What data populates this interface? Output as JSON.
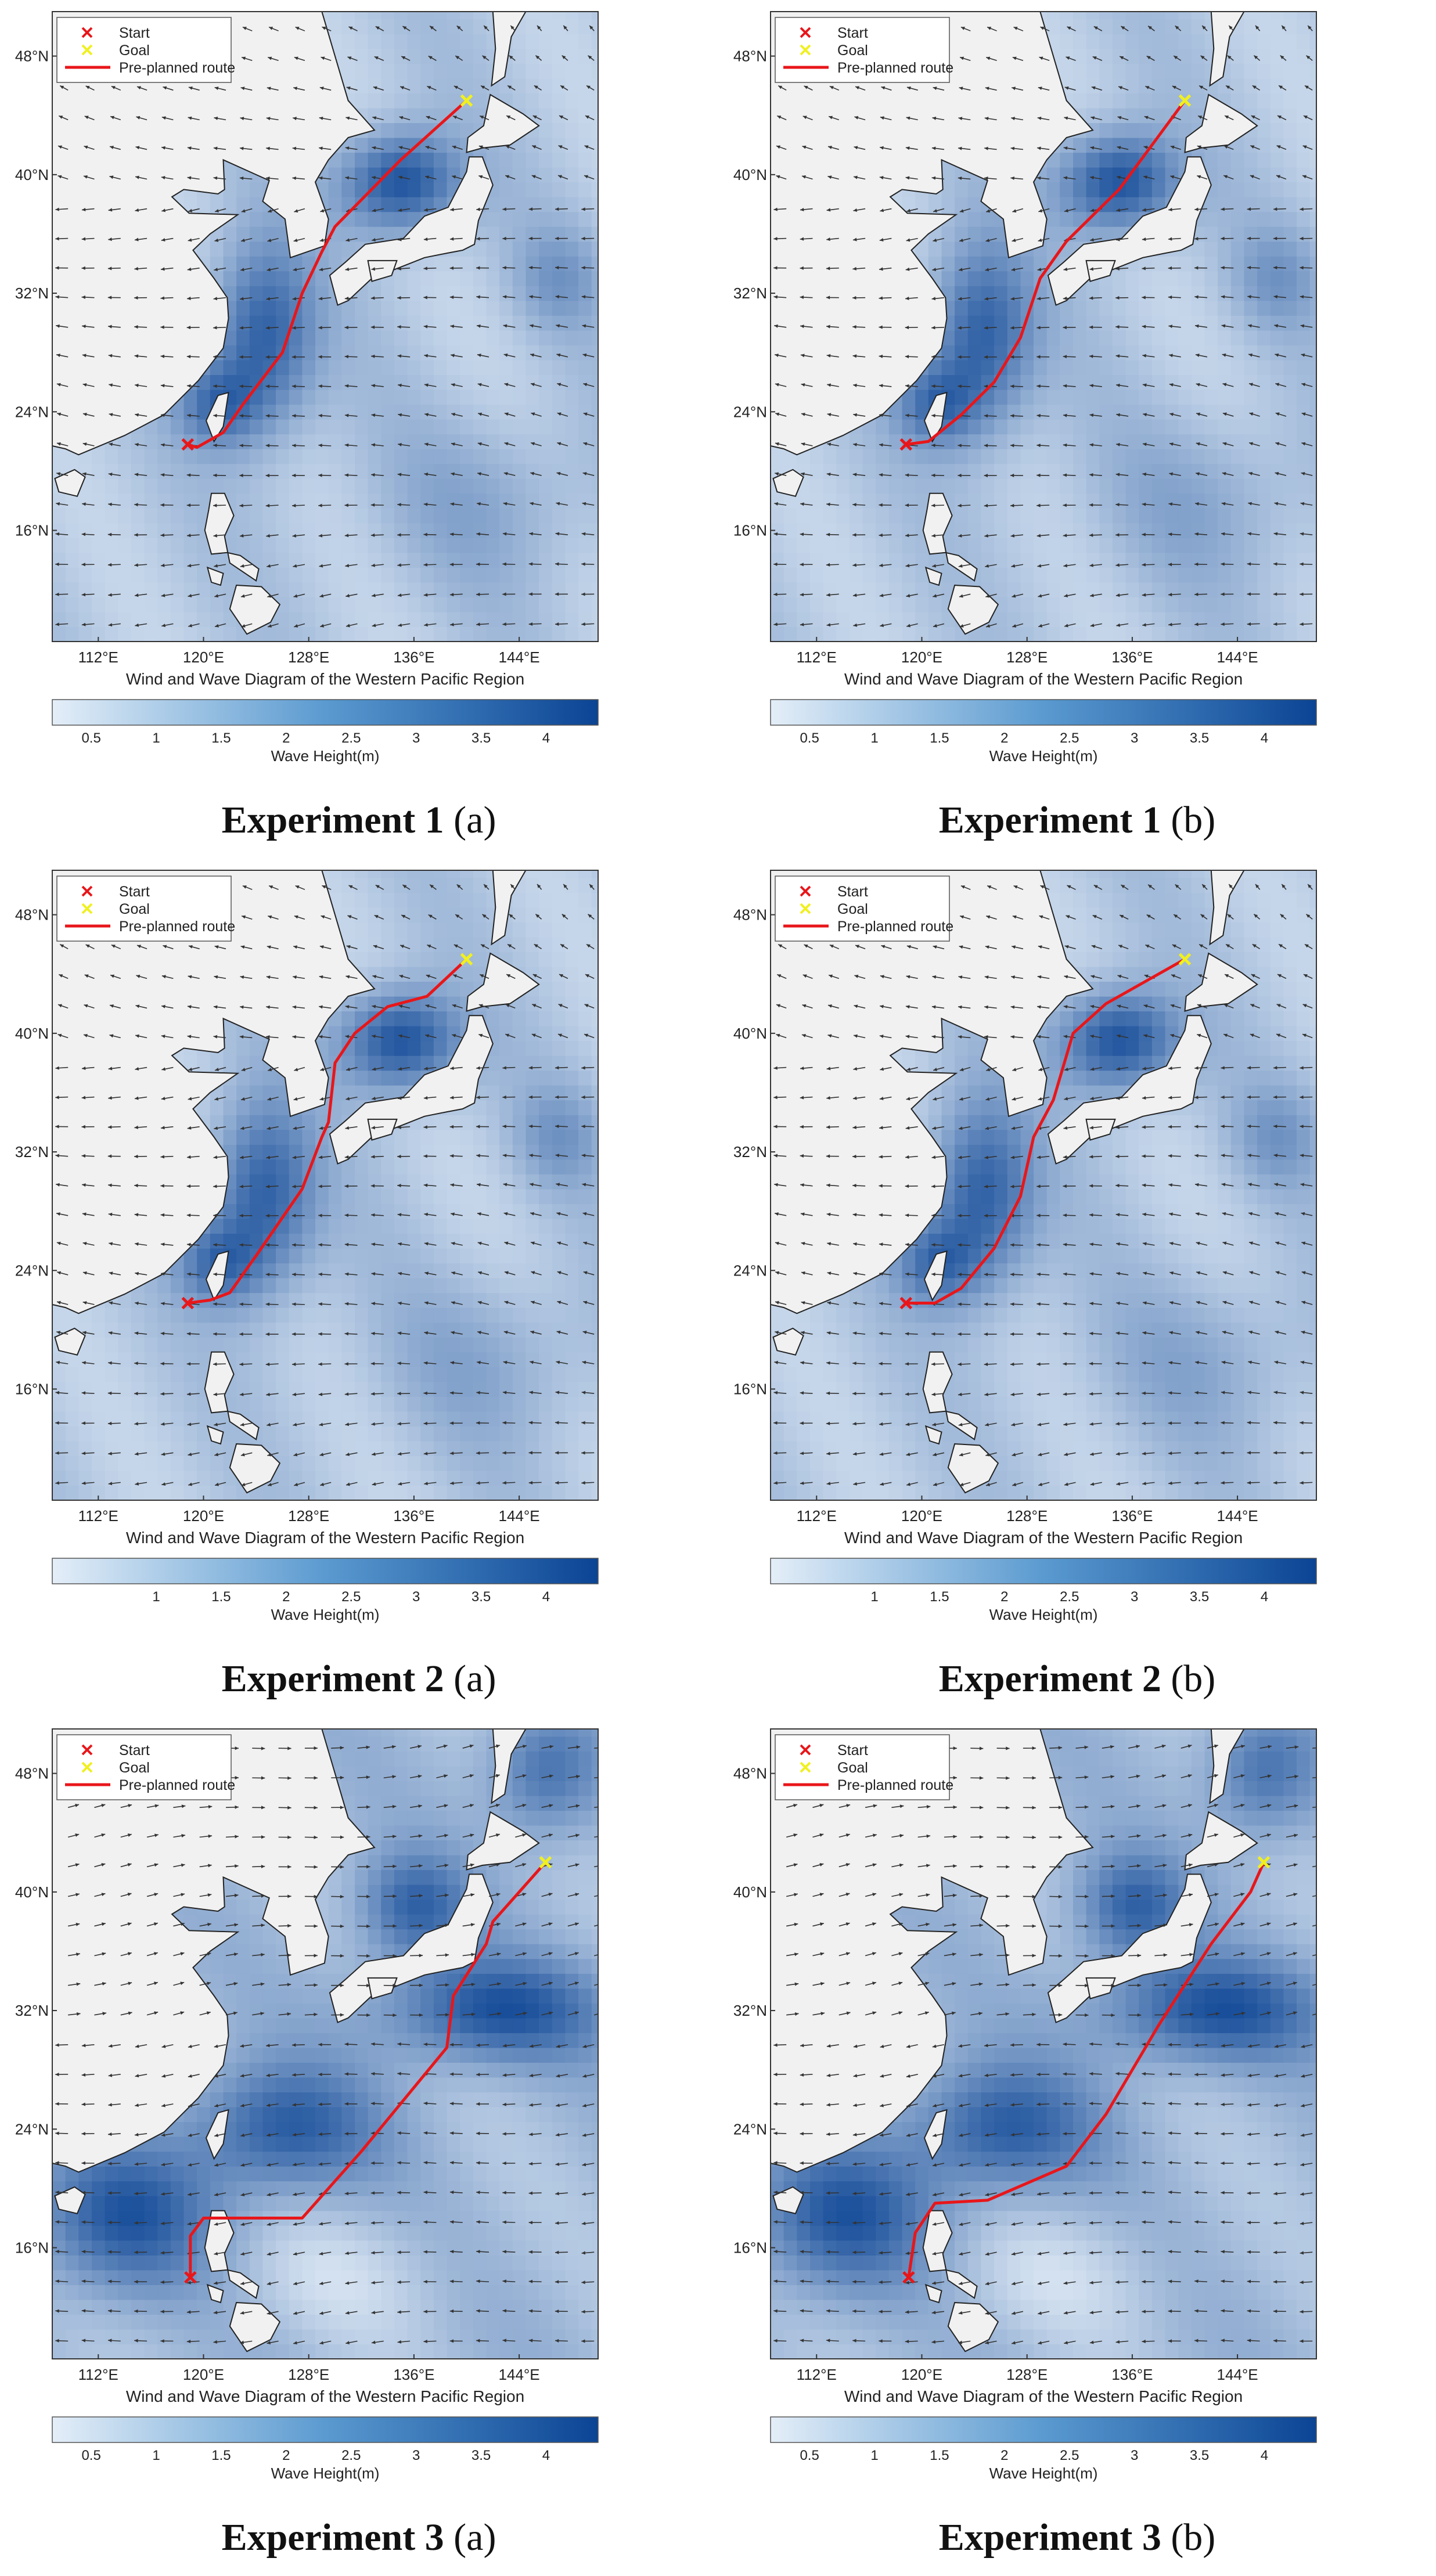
{
  "figure": {
    "map_title": "Wind and Wave Diagram of the Western Pacific Region",
    "colorbar_label": "Wave Height(m)",
    "legend": {
      "start": "Start",
      "goal": "Goal",
      "route": "Pre-planned route"
    },
    "lat_ticks": [
      "48°N",
      "40°N",
      "32°N",
      "24°N",
      "16°N"
    ],
    "lon_ticks": [
      "112°E",
      "120°E",
      "128°E",
      "136°E",
      "144°E"
    ],
    "colors": {
      "route": "#e8161a",
      "start": "#e8161a",
      "goal": "#f0f020",
      "land": "#f1f1f1",
      "water_light": "#e4eef8",
      "water_dark": "#0b4494"
    }
  },
  "panels": [
    {
      "caption_main": "Experiment 1",
      "caption_letter": "(a)",
      "colorbar_ticks": [
        "0.5",
        "1",
        "1.5",
        "2",
        "2.5",
        "3",
        "3.5",
        "4"
      ],
      "start": [
        118.8,
        21.8
      ],
      "goal": [
        140.0,
        45.0
      ],
      "route": [
        [
          118.8,
          21.8
        ],
        [
          119.5,
          21.6
        ],
        [
          121.5,
          22.6
        ],
        [
          123.0,
          24.5
        ],
        [
          126.0,
          28.0
        ],
        [
          127.5,
          32.0
        ],
        [
          129.0,
          34.8
        ],
        [
          130.0,
          36.5
        ],
        [
          135.0,
          41.0
        ],
        [
          140.0,
          45.0
        ]
      ]
    },
    {
      "caption_main": "Experiment 1",
      "caption_letter": "(b)",
      "colorbar_ticks": [
        "0.5",
        "1",
        "1.5",
        "2",
        "2.5",
        "3",
        "3.5",
        "4"
      ],
      "start": [
        118.8,
        21.8
      ],
      "goal": [
        140.0,
        45.0
      ],
      "route": [
        [
          118.8,
          21.8
        ],
        [
          120.5,
          22.0
        ],
        [
          123.0,
          23.8
        ],
        [
          125.5,
          26.0
        ],
        [
          127.5,
          29.0
        ],
        [
          129.0,
          33.0
        ],
        [
          131.0,
          35.5
        ],
        [
          135.0,
          39.0
        ],
        [
          137.5,
          42.0
        ],
        [
          140.0,
          45.0
        ]
      ]
    },
    {
      "caption_main": "Experiment 2",
      "caption_letter": "(a)",
      "colorbar_ticks": [
        "1",
        "1.5",
        "2",
        "2.5",
        "3",
        "3.5",
        "4"
      ],
      "start": [
        118.8,
        21.8
      ],
      "goal": [
        140.0,
        45.0
      ],
      "route": [
        [
          118.8,
          21.8
        ],
        [
          120.5,
          22.0
        ],
        [
          122.0,
          22.5
        ],
        [
          124.0,
          25.0
        ],
        [
          127.5,
          29.5
        ],
        [
          129.0,
          33.0
        ],
        [
          129.5,
          34.0
        ],
        [
          130.0,
          38.0
        ],
        [
          131.5,
          40.0
        ],
        [
          134.0,
          41.8
        ],
        [
          137.0,
          42.5
        ],
        [
          140.0,
          45.0
        ]
      ]
    },
    {
      "caption_main": "Experiment 2",
      "caption_letter": "(b)",
      "colorbar_ticks": [
        "1",
        "1.5",
        "2",
        "2.5",
        "3",
        "3.5",
        "4"
      ],
      "start": [
        118.8,
        21.8
      ],
      "goal": [
        140.0,
        45.0
      ],
      "route": [
        [
          118.8,
          21.8
        ],
        [
          121.0,
          21.8
        ],
        [
          123.0,
          22.8
        ],
        [
          125.5,
          25.5
        ],
        [
          127.5,
          29.0
        ],
        [
          128.5,
          33.0
        ],
        [
          130.0,
          35.5
        ],
        [
          131.5,
          40.0
        ],
        [
          134.0,
          42.0
        ],
        [
          137.0,
          43.5
        ],
        [
          140.0,
          45.0
        ]
      ]
    },
    {
      "caption_main": "Experiment 3",
      "caption_letter": "(a)",
      "colorbar_ticks": [
        "0.5",
        "1",
        "1.5",
        "2",
        "2.5",
        "3",
        "3.5",
        "4"
      ],
      "start": [
        119.0,
        14.0
      ],
      "goal": [
        146.0,
        42.0
      ],
      "route": [
        [
          119.0,
          14.0
        ],
        [
          119.0,
          16.8
        ],
        [
          120.0,
          18.0
        ],
        [
          127.5,
          18.0
        ],
        [
          132.0,
          22.5
        ],
        [
          138.5,
          29.5
        ],
        [
          139.0,
          33.0
        ],
        [
          141.5,
          36.5
        ],
        [
          142.0,
          38.0
        ],
        [
          146.0,
          42.0
        ]
      ]
    },
    {
      "caption_main": "Experiment 3",
      "caption_letter": "(b)",
      "colorbar_ticks": [
        "0.5",
        "1",
        "1.5",
        "2",
        "2.5",
        "3",
        "3.5",
        "4"
      ],
      "start": [
        119.0,
        14.0
      ],
      "goal": [
        146.0,
        42.0
      ],
      "route": [
        [
          119.0,
          14.0
        ],
        [
          119.5,
          17.0
        ],
        [
          121.0,
          19.0
        ],
        [
          125.0,
          19.2
        ],
        [
          131.0,
          21.5
        ],
        [
          134.0,
          25.0
        ],
        [
          138.0,
          31.0
        ],
        [
          142.0,
          36.5
        ],
        [
          145.0,
          40.0
        ],
        [
          146.0,
          42.0
        ]
      ]
    }
  ]
}
